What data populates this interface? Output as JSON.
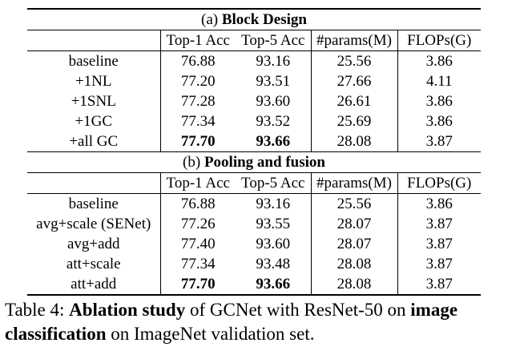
{
  "columns": [
    "",
    "Top-1 Acc",
    "Top-5 Acc",
    "#params(M)",
    "FLOPs(G)"
  ],
  "sections": [
    {
      "prefix": "(a) ",
      "title": "Block Design",
      "rows": [
        {
          "method": "baseline",
          "top1": "76.88",
          "top5": "93.16",
          "params": "25.56",
          "flops": "3.86"
        },
        {
          "method": "+1NL",
          "top1": "77.20",
          "top5": "93.51",
          "params": "27.66",
          "flops": "4.11"
        },
        {
          "method": "+1SNL",
          "top1": "77.28",
          "top5": "93.60",
          "params": "26.61",
          "flops": "3.86"
        },
        {
          "method": "+1GC",
          "top1": "77.34",
          "top5": "93.52",
          "params": "25.69",
          "flops": "3.86"
        },
        {
          "method": "+all GC",
          "top1": "77.70",
          "top5": "93.66",
          "params": "28.08",
          "flops": "3.87"
        }
      ]
    },
    {
      "prefix": "(b) ",
      "title": "Pooling and fusion",
      "rows": [
        {
          "method": "baseline",
          "top1": "76.88",
          "top5": "93.16",
          "params": "25.56",
          "flops": "3.86"
        },
        {
          "method": "avg+scale (SENet)",
          "top1": "77.26",
          "top5": "93.55",
          "params": "28.07",
          "flops": "3.87"
        },
        {
          "method": "avg+add",
          "top1": "77.40",
          "top5": "93.60",
          "params": "28.07",
          "flops": "3.87"
        },
        {
          "method": "att+scale",
          "top1": "77.34",
          "top5": "93.48",
          "params": "28.08",
          "flops": "3.87"
        },
        {
          "method": "att+add",
          "top1": "77.70",
          "top5": "93.66",
          "params": "28.08",
          "flops": "3.87"
        }
      ]
    }
  ],
  "caption": {
    "label": "Table 4: ",
    "part1_bold": "Ablation study",
    "part2": " of GCNet with ResNet-50 on ",
    "part3_bold": "image classification",
    "part4": " on ImageNet validation set."
  }
}
